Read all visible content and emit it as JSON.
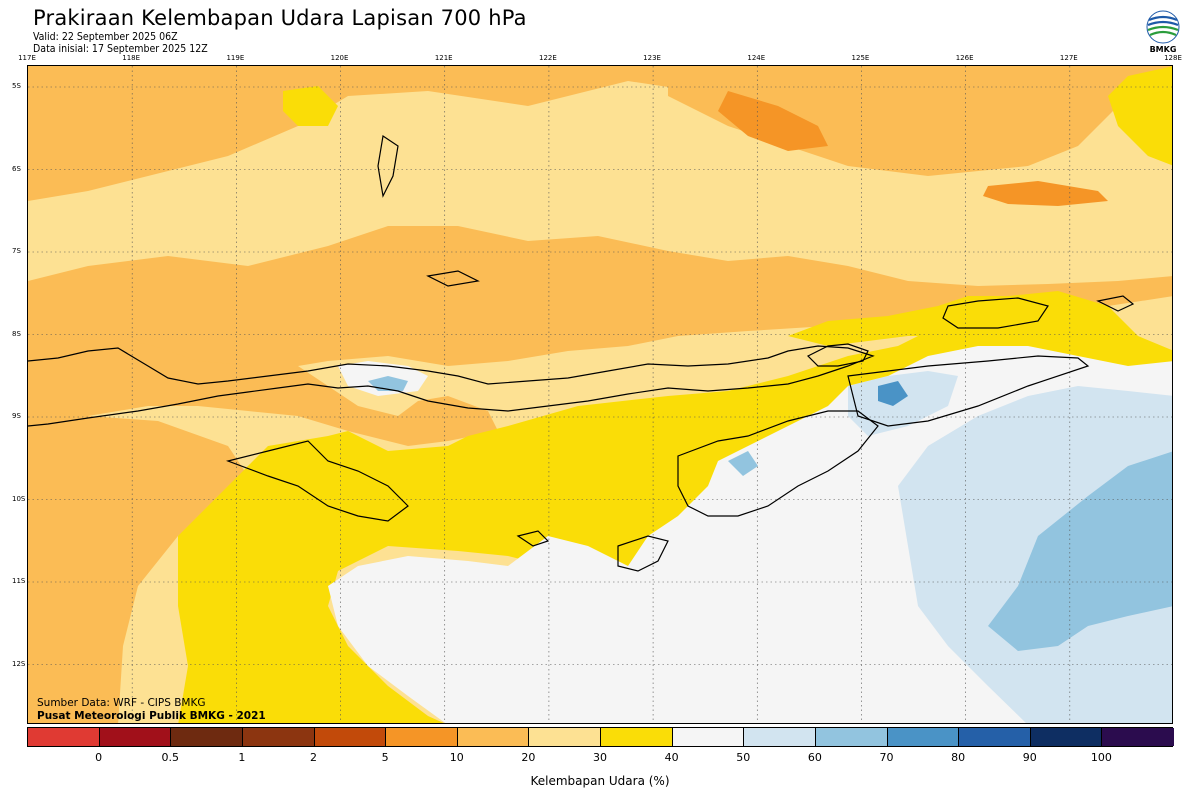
{
  "header": {
    "title": "Prakiraan Kelembapan Udara Lapisan 700 hPa",
    "valid": "Valid: 22 September 2025 06Z",
    "init": "Data inisial: 17 September 2025 12Z",
    "logo_text": "BMKG"
  },
  "map": {
    "lon_labels": [
      "117E",
      "118E",
      "119E",
      "120E",
      "121E",
      "122E",
      "123E",
      "124E",
      "125E",
      "126E",
      "127E",
      "128E"
    ],
    "lat_labels": [
      "5S",
      "6S",
      "7S",
      "8S",
      "9S",
      "10S",
      "11S",
      "12S"
    ],
    "source_line1": "Sumber Data: WRF - CIPS BMKG",
    "source_line2": "Pusat Meteorologi Publik BMKG - 2021"
  },
  "colorbar": {
    "label": "Kelembapan Udara (%)",
    "ticks": [
      "0",
      "0.5",
      "1",
      "2",
      "5",
      "10",
      "20",
      "30",
      "40",
      "50",
      "60",
      "70",
      "80",
      "90",
      "100"
    ],
    "colors": [
      "#e03a33",
      "#a1101a",
      "#6e2a10",
      "#8c3510",
      "#c24a0a",
      "#f59526",
      "#fbbc55",
      "#fde193",
      "#fadd07",
      "#f5f5f5",
      "#d2e4f0",
      "#92c4df",
      "#4a93c6",
      "#2560a8",
      "#0e2e62",
      "#2b0c4e"
    ]
  }
}
